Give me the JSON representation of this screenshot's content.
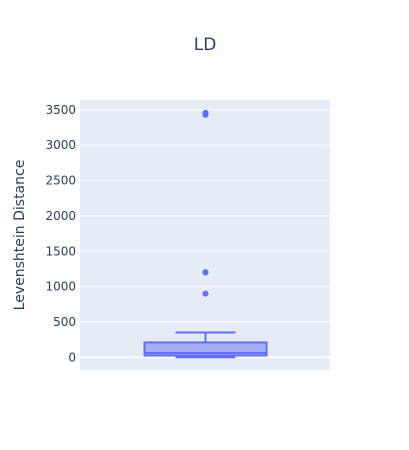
{
  "chart_data": {
    "type": "box",
    "title": "LD",
    "xlabel": "",
    "ylabel": "Levenshtein Distance",
    "ylim": [
      -180,
      3640
    ],
    "yticks": [
      0,
      500,
      1000,
      1500,
      2000,
      2500,
      3000,
      3500
    ],
    "grid": true,
    "legend": "none",
    "series": [
      {
        "min": 0,
        "q1": 25,
        "median": 60,
        "q3": 210,
        "max": 350,
        "outliers": [
          900,
          1200,
          1205,
          3430,
          3460
        ]
      }
    ],
    "colors": {
      "plot_bg": "#e5ecf6",
      "grid": "#ffffff",
      "box_line": "#636efa",
      "box_fill": "rgba(99,110,250,0.5)",
      "text": "#2a3f5f"
    }
  }
}
